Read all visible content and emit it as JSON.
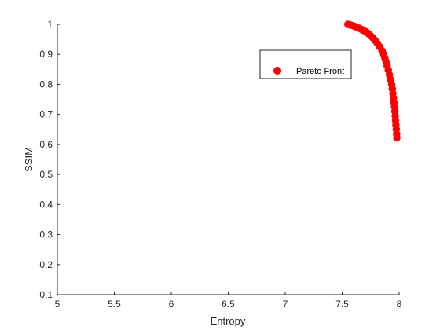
{
  "chart_data": {
    "type": "scatter",
    "xlabel": "Entropy",
    "ylabel": "SSIM",
    "xlim": [
      5,
      8
    ],
    "ylim": [
      0.1,
      1
    ],
    "xticks": [
      5,
      5.5,
      6,
      6.5,
      7,
      7.5,
      8
    ],
    "yticks": [
      0.1,
      0.2,
      0.3,
      0.4,
      0.5,
      0.6,
      0.7,
      0.8,
      0.9,
      1
    ],
    "grid": false,
    "legend_position": "top-right",
    "series": [
      {
        "name": "Pareto Front",
        "color": "#ff0000",
        "marker": "circle",
        "points": [
          [
            7.55,
            1.0
          ],
          [
            7.57,
            0.998
          ],
          [
            7.59,
            0.996
          ],
          [
            7.61,
            0.993
          ],
          [
            7.63,
            0.99
          ],
          [
            7.65,
            0.987
          ],
          [
            7.67,
            0.983
          ],
          [
            7.69,
            0.979
          ],
          [
            7.71,
            0.975
          ],
          [
            7.73,
            0.969
          ],
          [
            7.75,
            0.962
          ],
          [
            7.77,
            0.955
          ],
          [
            7.79,
            0.946
          ],
          [
            7.81,
            0.936
          ],
          [
            7.83,
            0.925
          ],
          [
            7.85,
            0.912
          ],
          [
            7.865,
            0.9
          ],
          [
            7.875,
            0.888
          ],
          [
            7.885,
            0.876
          ],
          [
            7.895,
            0.862
          ],
          [
            7.905,
            0.848
          ],
          [
            7.915,
            0.832
          ],
          [
            7.925,
            0.816
          ],
          [
            7.935,
            0.8
          ],
          [
            7.94,
            0.785
          ],
          [
            7.945,
            0.77
          ],
          [
            7.95,
            0.755
          ],
          [
            7.955,
            0.74
          ],
          [
            7.96,
            0.725
          ],
          [
            7.963,
            0.71
          ],
          [
            7.966,
            0.695
          ],
          [
            7.969,
            0.68
          ],
          [
            7.972,
            0.665
          ],
          [
            7.975,
            0.65
          ],
          [
            7.978,
            0.635
          ],
          [
            7.98,
            0.622
          ]
        ]
      }
    ]
  }
}
